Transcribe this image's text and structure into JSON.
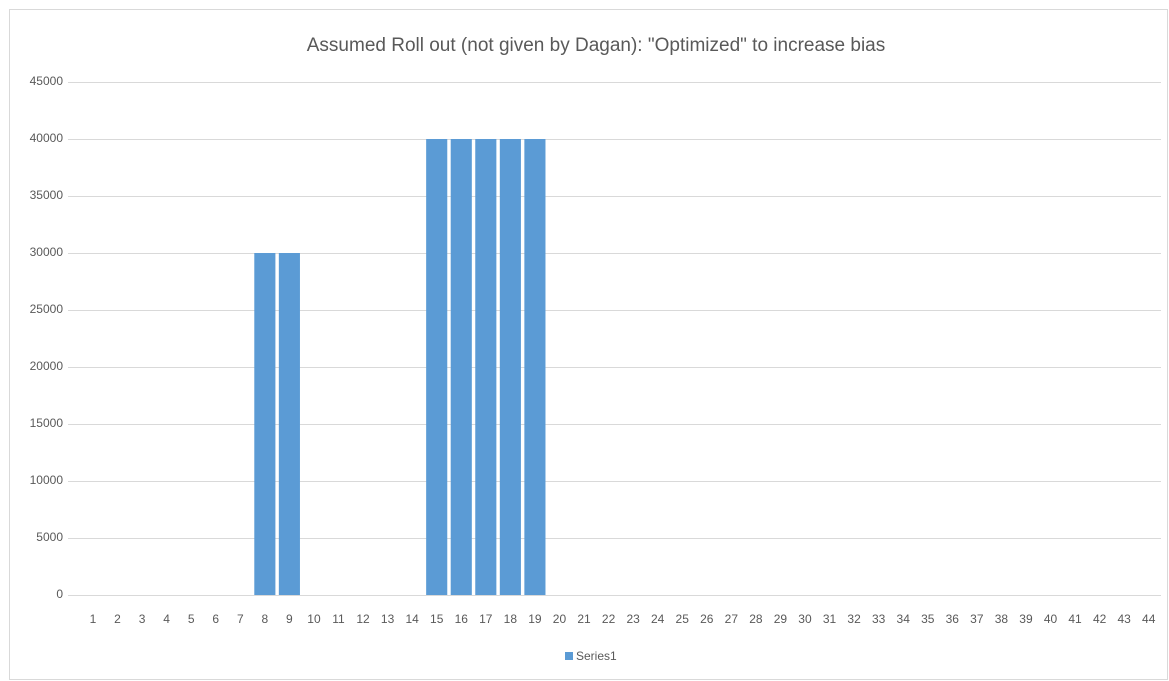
{
  "chart_data": {
    "type": "bar",
    "title": "Assumed Roll out (not given by Dagan): \"Optimized\" to increase bias",
    "categories": [
      "1",
      "2",
      "3",
      "4",
      "5",
      "6",
      "7",
      "8",
      "9",
      "10",
      "11",
      "12",
      "13",
      "14",
      "15",
      "16",
      "17",
      "18",
      "19",
      "20",
      "21",
      "22",
      "23",
      "24",
      "25",
      "26",
      "27",
      "28",
      "29",
      "30",
      "31",
      "32",
      "33",
      "34",
      "35",
      "36",
      "37",
      "38",
      "39",
      "40",
      "41",
      "42",
      "43",
      "44"
    ],
    "series": [
      {
        "name": "Series1",
        "color": "#5b9bd5",
        "values": [
          0,
          0,
          0,
          0,
          0,
          0,
          0,
          30000,
          30000,
          0,
          0,
          0,
          0,
          0,
          40000,
          40000,
          40000,
          40000,
          40000,
          0,
          0,
          0,
          0,
          0,
          0,
          0,
          0,
          0,
          0,
          0,
          0,
          0,
          0,
          0,
          0,
          0,
          0,
          0,
          0,
          0,
          0,
          0,
          0,
          0
        ]
      }
    ],
    "ylim": [
      0,
      45000
    ],
    "yticks": [
      0,
      5000,
      10000,
      15000,
      20000,
      25000,
      30000,
      35000,
      40000,
      45000
    ],
    "grid": true,
    "legend": "bottom"
  }
}
